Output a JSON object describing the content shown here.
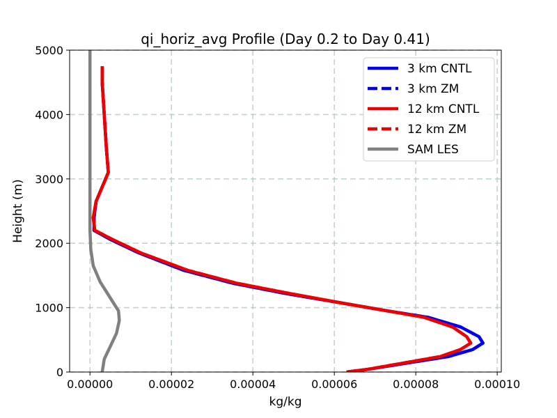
{
  "chart_data": {
    "type": "line",
    "title": "qi_horiz_avg Profile (Day 0.2 to Day 0.41)",
    "xlabel": "kg/kg",
    "ylabel": "Height (m)",
    "xlim": [
      -5e-06,
      0.000101
    ],
    "ylim": [
      0,
      5000
    ],
    "xticks": [
      0.0,
      2e-05,
      4e-05,
      6e-05,
      8e-05,
      0.0001
    ],
    "xtick_labels": [
      "0.00000",
      "0.00002",
      "0.00004",
      "0.00006",
      "0.00008",
      "0.00010"
    ],
    "yticks": [
      0,
      1000,
      2000,
      3000,
      4000,
      5000
    ],
    "ytick_labels": [
      "0",
      "1000",
      "2000",
      "3000",
      "4000",
      "5000"
    ],
    "grid": true,
    "legend_position": "top-right",
    "series": [
      {
        "name": "3 km CNTL",
        "color": "#0000ee",
        "style": "solid",
        "x": [
          6.3e-05,
          6.8e-05,
          7.8e-05,
          8.8e-05,
          9.4e-05,
          9.65e-05,
          9.55e-05,
          9.1e-05,
          8.3e-05,
          7.3e-05,
          6.2e-05,
          4.8e-05,
          3.5e-05,
          2.3e-05,
          1.2e-05,
          5e-06,
          1e-06,
          1e-06,
          1.5e-06,
          2.5e-06,
          4.5e-06,
          4e-06,
          3.5e-06,
          3e-06,
          3e-06
        ],
        "y": [
          0,
          40,
          140,
          240,
          350,
          450,
          550,
          700,
          850,
          950,
          1070,
          1220,
          1380,
          1580,
          1850,
          2060,
          2200,
          2400,
          2650,
          2800,
          3100,
          3500,
          4000,
          4500,
          4750
        ]
      },
      {
        "name": "3 km ZM",
        "color": "#0000ee",
        "style": "dashed",
        "x": [
          6.3e-05,
          6.8e-05,
          7.8e-05,
          8.8e-05,
          9.4e-05,
          9.65e-05,
          9.55e-05,
          9.1e-05,
          8.3e-05,
          7.3e-05,
          6.2e-05,
          4.8e-05,
          3.5e-05,
          2.3e-05,
          1.2e-05,
          5e-06,
          1e-06,
          1e-06,
          1.5e-06,
          2.5e-06,
          4.5e-06,
          4e-06,
          3.5e-06,
          3e-06,
          3e-06
        ],
        "y": [
          0,
          40,
          140,
          240,
          350,
          450,
          550,
          700,
          850,
          950,
          1070,
          1220,
          1380,
          1580,
          1850,
          2060,
          2200,
          2400,
          2650,
          2800,
          3100,
          3500,
          4000,
          4500,
          4750
        ]
      },
      {
        "name": "12 km CNTL",
        "color": "#ee0000",
        "style": "solid",
        "x": [
          6.3e-05,
          6.8e-05,
          7.7e-05,
          8.6e-05,
          9.1e-05,
          9.35e-05,
          9.25e-05,
          8.9e-05,
          8.2e-05,
          7.3e-05,
          6.2e-05,
          4.9e-05,
          3.6e-05,
          2.4e-05,
          1.25e-05,
          5.5e-06,
          1.2e-06,
          8e-07,
          1.5e-06,
          2.5e-06,
          4.5e-06,
          4e-06,
          3.5e-06,
          3e-06,
          3e-06
        ],
        "y": [
          0,
          40,
          140,
          240,
          350,
          450,
          550,
          700,
          850,
          950,
          1070,
          1220,
          1380,
          1580,
          1850,
          2060,
          2200,
          2400,
          2650,
          2800,
          3100,
          3500,
          4000,
          4500,
          4750
        ]
      },
      {
        "name": "12 km ZM",
        "color": "#ee0000",
        "style": "dashed",
        "x": [
          6.3e-05,
          6.8e-05,
          7.7e-05,
          8.6e-05,
          9.1e-05,
          9.35e-05,
          9.25e-05,
          8.9e-05,
          8.2e-05,
          7.3e-05,
          6.2e-05,
          4.9e-05,
          3.6e-05,
          2.4e-05,
          1.25e-05,
          5.5e-06,
          1.2e-06,
          8e-07,
          1.5e-06,
          2.5e-06,
          4.5e-06,
          4e-06,
          3.5e-06,
          3e-06,
          3e-06
        ],
        "y": [
          0,
          40,
          140,
          240,
          350,
          450,
          550,
          700,
          850,
          950,
          1070,
          1220,
          1380,
          1580,
          1850,
          2060,
          2200,
          2400,
          2650,
          2800,
          3100,
          3500,
          4000,
          4500,
          4750
        ]
      },
      {
        "name": "SAM LES",
        "color": "#808080",
        "style": "solid",
        "x": [
          3e-06,
          3.5e-06,
          5e-06,
          6.5e-06,
          7.2e-06,
          7e-06,
          5e-06,
          2.5e-06,
          8e-07,
          2e-07,
          0.0,
          0.0,
          0.0,
          0.0,
          0.0,
          0.0
        ],
        "y": [
          0,
          200,
          400,
          600,
          800,
          950,
          1150,
          1400,
          1650,
          1900,
          2200,
          2600,
          3000,
          3500,
          4200,
          5000
        ]
      }
    ]
  }
}
